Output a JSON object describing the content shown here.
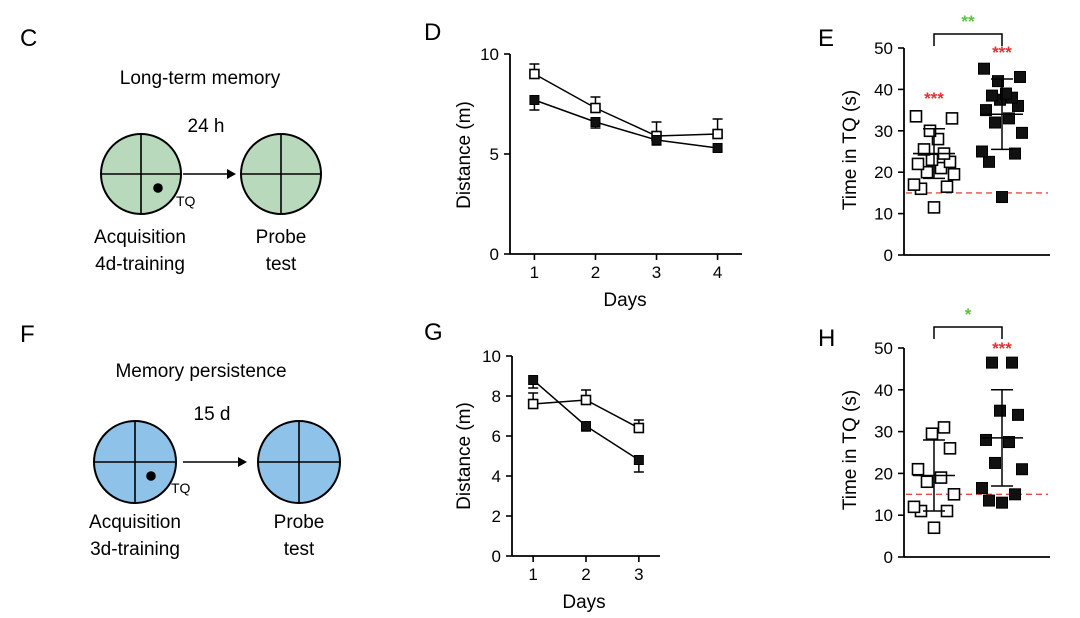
{
  "colors": {
    "stroke": "#000000",
    "open_fill": "#ffffff",
    "filled": "#111111",
    "water_green": "#b9d9bc",
    "water_blue": "#8fc2e8",
    "sig_red": "#e5322d",
    "sig_green": "#5fbf3f",
    "chance_line": "#e84a4a"
  },
  "schematics": [
    {
      "panel": "C",
      "title": "Long-term memory",
      "interval": "24 h",
      "platform_label": "TQ",
      "left_label": [
        "Acquisition",
        "4d-training"
      ],
      "right_label": [
        "Probe",
        "test"
      ],
      "pool_color": "green"
    },
    {
      "panel": "F",
      "title": "Memory persistence",
      "interval": "15 d",
      "platform_label": "TQ",
      "left_label": [
        "Acquisition",
        "3d-training"
      ],
      "right_label": [
        "Probe",
        "test"
      ],
      "pool_color": "blue"
    }
  ],
  "chart_data": [
    {
      "panel": "D",
      "type": "line",
      "xlabel": "Days",
      "ylabel": "Distance (m)",
      "x": [
        1,
        2,
        3,
        4
      ],
      "xlim": [
        0.6,
        4.4
      ],
      "ylim": [
        0,
        10
      ],
      "yticks": [
        "0",
        "5",
        "10"
      ],
      "xticks": [
        "1",
        "2",
        "3",
        "4"
      ],
      "series": [
        {
          "name": "open",
          "marker": "open-square",
          "values": [
            9.0,
            7.3,
            5.9,
            6.0
          ],
          "errors": [
            0.5,
            0.55,
            0.7,
            0.75
          ]
        },
        {
          "name": "filled",
          "marker": "filled-square",
          "values": [
            7.7,
            6.6,
            5.7,
            5.3
          ],
          "errors": [
            0.5,
            0.3,
            0.25,
            0.15
          ]
        }
      ]
    },
    {
      "panel": "E",
      "type": "scatter",
      "ylabel": "Time in TQ (s)",
      "ylim": [
        0,
        50
      ],
      "yticks": [
        "0",
        "10",
        "20",
        "30",
        "40",
        "50"
      ],
      "chance_level": 15,
      "groups": [
        {
          "name": "open",
          "marker": "open-square",
          "mean": 24.5,
          "sd": 6,
          "points": [
            11.5,
            16,
            16.5,
            17,
            19.5,
            20,
            21,
            22,
            22.5,
            23,
            24.5,
            25.5,
            28,
            30,
            33,
            33.5
          ],
          "sig": "***"
        },
        {
          "name": "filled",
          "marker": "filled-square",
          "mean": 34,
          "sd": 8.5,
          "points": [
            14,
            22.5,
            24.5,
            25,
            29.5,
            32,
            33,
            35,
            36,
            37.5,
            38,
            38.5,
            39,
            42,
            43,
            45
          ],
          "sig": "***"
        }
      ],
      "comparison": "**"
    },
    {
      "panel": "G",
      "type": "line",
      "xlabel": "Days",
      "ylabel": "Distance (m)",
      "x": [
        1,
        2,
        3
      ],
      "xlim": [
        0.6,
        3.4
      ],
      "ylim": [
        0,
        10
      ],
      "yticks": [
        "0",
        "2",
        "4",
        "6",
        "8",
        "10"
      ],
      "xticks": [
        "1",
        "2",
        "3"
      ],
      "series": [
        {
          "name": "open",
          "marker": "open-square",
          "values": [
            7.6,
            7.8,
            6.4
          ],
          "errors": [
            0.55,
            0.5,
            0.4
          ]
        },
        {
          "name": "filled",
          "marker": "filled-square",
          "values": [
            8.8,
            6.5,
            4.8
          ],
          "errors": [
            0.4,
            0.25,
            0.6
          ]
        }
      ]
    },
    {
      "panel": "H",
      "type": "scatter",
      "ylabel": "Time in TQ (s)",
      "ylim": [
        0,
        50
      ],
      "yticks": [
        "0",
        "10",
        "20",
        "30",
        "40",
        "50"
      ],
      "chance_level": 15,
      "groups": [
        {
          "name": "open",
          "marker": "open-square",
          "mean": 19.5,
          "sd": 8.5,
          "points": [
            7,
            11,
            11,
            12,
            15,
            18,
            19,
            21,
            26,
            29.5,
            31
          ],
          "sig": ""
        },
        {
          "name": "filled",
          "marker": "filled-square",
          "mean": 28.5,
          "sd": 11.5,
          "points": [
            13,
            13.5,
            15,
            16.5,
            21,
            22.5,
            27.5,
            28,
            34,
            35,
            46.5,
            46.5
          ],
          "sig": "***"
        }
      ],
      "comparison": "*"
    }
  ]
}
